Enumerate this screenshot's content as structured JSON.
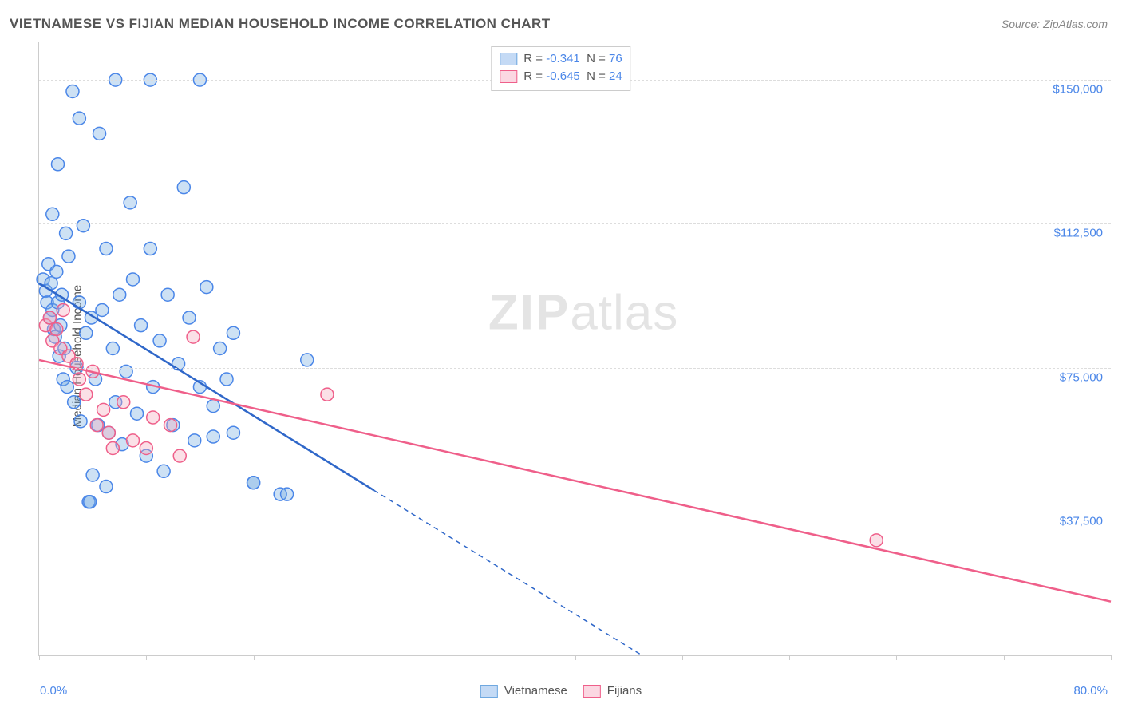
{
  "title": "VIETNAMESE VS FIJIAN MEDIAN HOUSEHOLD INCOME CORRELATION CHART",
  "source_prefix": "Source: ",
  "source_name": "ZipAtlas.com",
  "ylabel": "Median Household Income",
  "watermark_zip": "ZIP",
  "watermark_atlas": "atlas",
  "chart": {
    "type": "scatter",
    "xlim": [
      0,
      80
    ],
    "ylim": [
      0,
      160000
    ],
    "x_tick_positions": [
      0,
      8,
      16,
      24,
      32,
      40,
      48,
      56,
      64,
      72,
      80
    ],
    "x_min_label": "0.0%",
    "x_max_label": "80.0%",
    "y_gridlines": [
      37500,
      75000,
      112500,
      150000
    ],
    "y_grid_labels": [
      "$37,500",
      "$75,000",
      "$112,500",
      "$150,000"
    ],
    "grid_color": "#dddddd",
    "axis_color": "#cccccc",
    "tick_label_color": "#4a86e8",
    "background_color": "#ffffff",
    "marker_radius": 8,
    "marker_stroke_width": 1.5,
    "marker_fill_opacity": 0.35,
    "series": [
      {
        "name": "Vietnamese",
        "color": "#6fa8e0",
        "stroke": "#4a86e8",
        "trend_color": "#2f67c9",
        "R": "-0.341",
        "N": "76",
        "trend_solid": [
          [
            0,
            97000
          ],
          [
            25,
            43000
          ]
        ],
        "trend_dash": [
          [
            25,
            43000
          ],
          [
            45,
            0
          ]
        ],
        "points": [
          [
            0.3,
            98000
          ],
          [
            0.5,
            95000
          ],
          [
            0.6,
            92000
          ],
          [
            0.7,
            102000
          ],
          [
            0.8,
            88000
          ],
          [
            0.9,
            97000
          ],
          [
            1.0,
            90000
          ],
          [
            1.0,
            115000
          ],
          [
            1.1,
            85000
          ],
          [
            1.2,
            83000
          ],
          [
            1.3,
            100000
          ],
          [
            1.4,
            92000
          ],
          [
            1.4,
            128000
          ],
          [
            1.5,
            78000
          ],
          [
            1.6,
            86000
          ],
          [
            1.7,
            94000
          ],
          [
            1.8,
            72000
          ],
          [
            1.9,
            80000
          ],
          [
            2.0,
            110000
          ],
          [
            2.1,
            70000
          ],
          [
            2.2,
            104000
          ],
          [
            2.5,
            147000
          ],
          [
            2.6,
            66000
          ],
          [
            2.8,
            75000
          ],
          [
            3.0,
            92000
          ],
          [
            3.0,
            140000
          ],
          [
            3.1,
            61000
          ],
          [
            3.3,
            112000
          ],
          [
            3.5,
            84000
          ],
          [
            3.7,
            40000
          ],
          [
            3.8,
            40000
          ],
          [
            3.9,
            88000
          ],
          [
            4.0,
            47000
          ],
          [
            4.2,
            72000
          ],
          [
            4.4,
            60000
          ],
          [
            4.5,
            136000
          ],
          [
            4.7,
            90000
          ],
          [
            5.0,
            106000
          ],
          [
            5.0,
            44000
          ],
          [
            5.2,
            58000
          ],
          [
            5.5,
            80000
          ],
          [
            5.7,
            66000
          ],
          [
            5.7,
            150000
          ],
          [
            6.0,
            94000
          ],
          [
            6.2,
            55000
          ],
          [
            6.5,
            74000
          ],
          [
            6.8,
            118000
          ],
          [
            7.0,
            98000
          ],
          [
            7.3,
            63000
          ],
          [
            7.6,
            86000
          ],
          [
            8.0,
            52000
          ],
          [
            8.3,
            106000
          ],
          [
            8.3,
            150000
          ],
          [
            8.5,
            70000
          ],
          [
            9.0,
            82000
          ],
          [
            9.3,
            48000
          ],
          [
            9.6,
            94000
          ],
          [
            10.0,
            60000
          ],
          [
            10.4,
            76000
          ],
          [
            10.8,
            122000
          ],
          [
            11.2,
            88000
          ],
          [
            11.6,
            56000
          ],
          [
            12.0,
            70000
          ],
          [
            12.0,
            150000
          ],
          [
            12.5,
            96000
          ],
          [
            13.0,
            65000
          ],
          [
            13.0,
            57000
          ],
          [
            13.5,
            80000
          ],
          [
            14.0,
            72000
          ],
          [
            14.5,
            58000
          ],
          [
            14.5,
            84000
          ],
          [
            16.0,
            45000
          ],
          [
            16.0,
            45000
          ],
          [
            18.0,
            42000
          ],
          [
            18.5,
            42000
          ],
          [
            20.0,
            77000
          ]
        ]
      },
      {
        "name": "Fijians",
        "color": "#f4a7bb",
        "stroke": "#ef5f8a",
        "trend_color": "#ef5f8a",
        "R": "-0.645",
        "N": "24",
        "trend_solid": [
          [
            0,
            77000
          ],
          [
            80,
            14000
          ]
        ],
        "trend_dash": null,
        "points": [
          [
            0.5,
            86000
          ],
          [
            0.8,
            88000
          ],
          [
            1.0,
            82000
          ],
          [
            1.3,
            85000
          ],
          [
            1.6,
            80000
          ],
          [
            1.8,
            90000
          ],
          [
            2.2,
            78000
          ],
          [
            2.8,
            76000
          ],
          [
            3.0,
            72000
          ],
          [
            3.5,
            68000
          ],
          [
            4.0,
            74000
          ],
          [
            4.3,
            60000
          ],
          [
            4.8,
            64000
          ],
          [
            5.2,
            58000
          ],
          [
            5.5,
            54000
          ],
          [
            6.3,
            66000
          ],
          [
            7.0,
            56000
          ],
          [
            8.0,
            54000
          ],
          [
            8.5,
            62000
          ],
          [
            9.8,
            60000
          ],
          [
            10.5,
            52000
          ],
          [
            11.5,
            83000
          ],
          [
            21.5,
            68000
          ],
          [
            62.5,
            30000
          ]
        ]
      }
    ]
  },
  "legend_top": {
    "r_prefix": "R = ",
    "n_prefix": "  N = "
  },
  "legend_bottom": {
    "items": [
      "Vietnamese",
      "Fijians"
    ]
  },
  "colors": {
    "title": "#555555",
    "source": "#888888",
    "ylabel": "#555555",
    "watermark": "#000000",
    "watermark_opacity": 0.1,
    "blue_fill": "#c4daf5",
    "blue_border": "#6fa8e0",
    "pink_fill": "#fbd7e2",
    "pink_border": "#ef5f8a"
  }
}
